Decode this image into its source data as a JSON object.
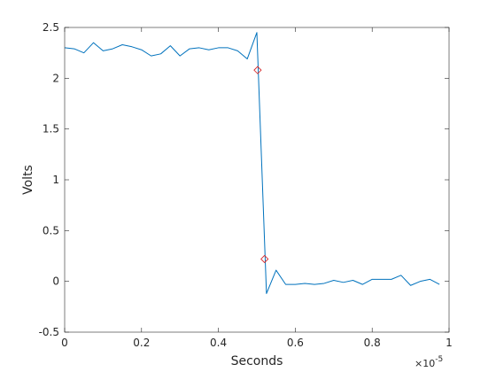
{
  "chart_data": {
    "type": "line",
    "xlabel": "Seconds",
    "ylabel": "Volts",
    "x_exponent": {
      "base": "×10",
      "power": "-5"
    },
    "xlim": [
      0,
      1
    ],
    "ylim": [
      -0.5,
      2.5
    ],
    "x_ticks": [
      0,
      0.2,
      0.4,
      0.6,
      0.8,
      1
    ],
    "x_tick_labels": [
      "0",
      "0.2",
      "0.4",
      "0.6",
      "0.8",
      "1"
    ],
    "y_ticks": [
      -0.5,
      0,
      0.5,
      1,
      1.5,
      2,
      2.5
    ],
    "y_tick_labels": [
      "-0.5",
      "0",
      "0.5",
      "1",
      "1.5",
      "2",
      "2.5"
    ],
    "grid": false,
    "colors": {
      "line": "#0072bd",
      "marker": "#d62728",
      "axis": "#262626"
    },
    "series": [
      {
        "x": [
          0,
          0.025,
          0.05,
          0.075,
          0.1,
          0.125,
          0.15,
          0.175,
          0.2,
          0.225,
          0.25,
          0.275,
          0.3,
          0.325,
          0.35,
          0.375,
          0.4,
          0.425,
          0.45,
          0.475,
          0.5,
          0.525,
          0.55,
          0.575,
          0.6,
          0.625,
          0.65,
          0.675,
          0.7,
          0.725,
          0.75,
          0.775,
          0.8,
          0.825,
          0.85,
          0.875,
          0.9,
          0.925,
          0.95,
          0.975
        ],
        "y": [
          2.3,
          2.29,
          2.25,
          2.35,
          2.27,
          2.29,
          2.33,
          2.31,
          2.28,
          2.22,
          2.24,
          2.32,
          2.22,
          2.29,
          2.3,
          2.28,
          2.3,
          2.3,
          2.27,
          2.19,
          2.45,
          -0.12,
          0.11,
          -0.03,
          -0.03,
          -0.02,
          -0.03,
          -0.02,
          0.01,
          -0.01,
          0.01,
          -0.03,
          0.02,
          0.02,
          0.02,
          0.06,
          -0.04,
          0.0,
          0.02,
          -0.03
        ]
      }
    ],
    "markers": [
      {
        "x": 0.502,
        "y": 2.08
      },
      {
        "x": 0.52,
        "y": 0.22
      }
    ]
  }
}
